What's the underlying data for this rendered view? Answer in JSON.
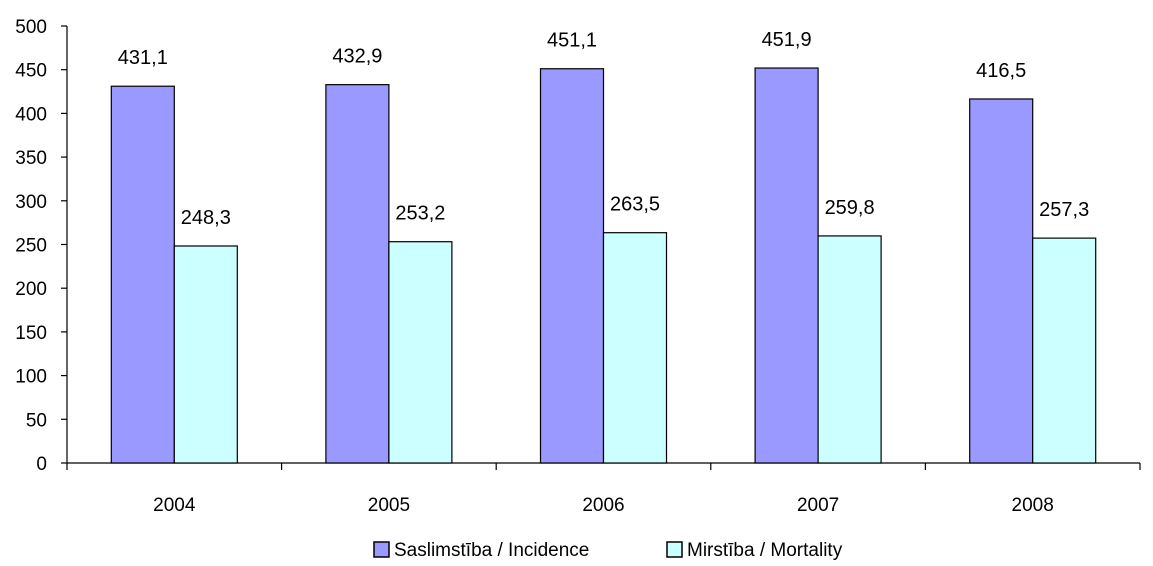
{
  "chart_data": {
    "type": "bar",
    "categories": [
      "2004",
      "2005",
      "2006",
      "2007",
      "2008"
    ],
    "series": [
      {
        "name": "Saslimstība / Incidence",
        "values": [
          431.1,
          432.9,
          451.1,
          451.9,
          416.5
        ],
        "labels": [
          "431,1",
          "432,9",
          "451,1",
          "451,9",
          "416,5"
        ],
        "color": "#9999ff"
      },
      {
        "name": "Mirstība / Mortality",
        "values": [
          248.3,
          253.2,
          263.5,
          259.8,
          257.3
        ],
        "labels": [
          "248,3",
          "253,2",
          "263,5",
          "259,8",
          "257,3"
        ],
        "color": "#ccffff"
      }
    ],
    "ylim": [
      0,
      500
    ],
    "yticks": [
      "0",
      "50",
      "100",
      "150",
      "200",
      "250",
      "300",
      "350",
      "400",
      "450",
      "500"
    ],
    "grid": false,
    "legend_position": "bottom"
  }
}
